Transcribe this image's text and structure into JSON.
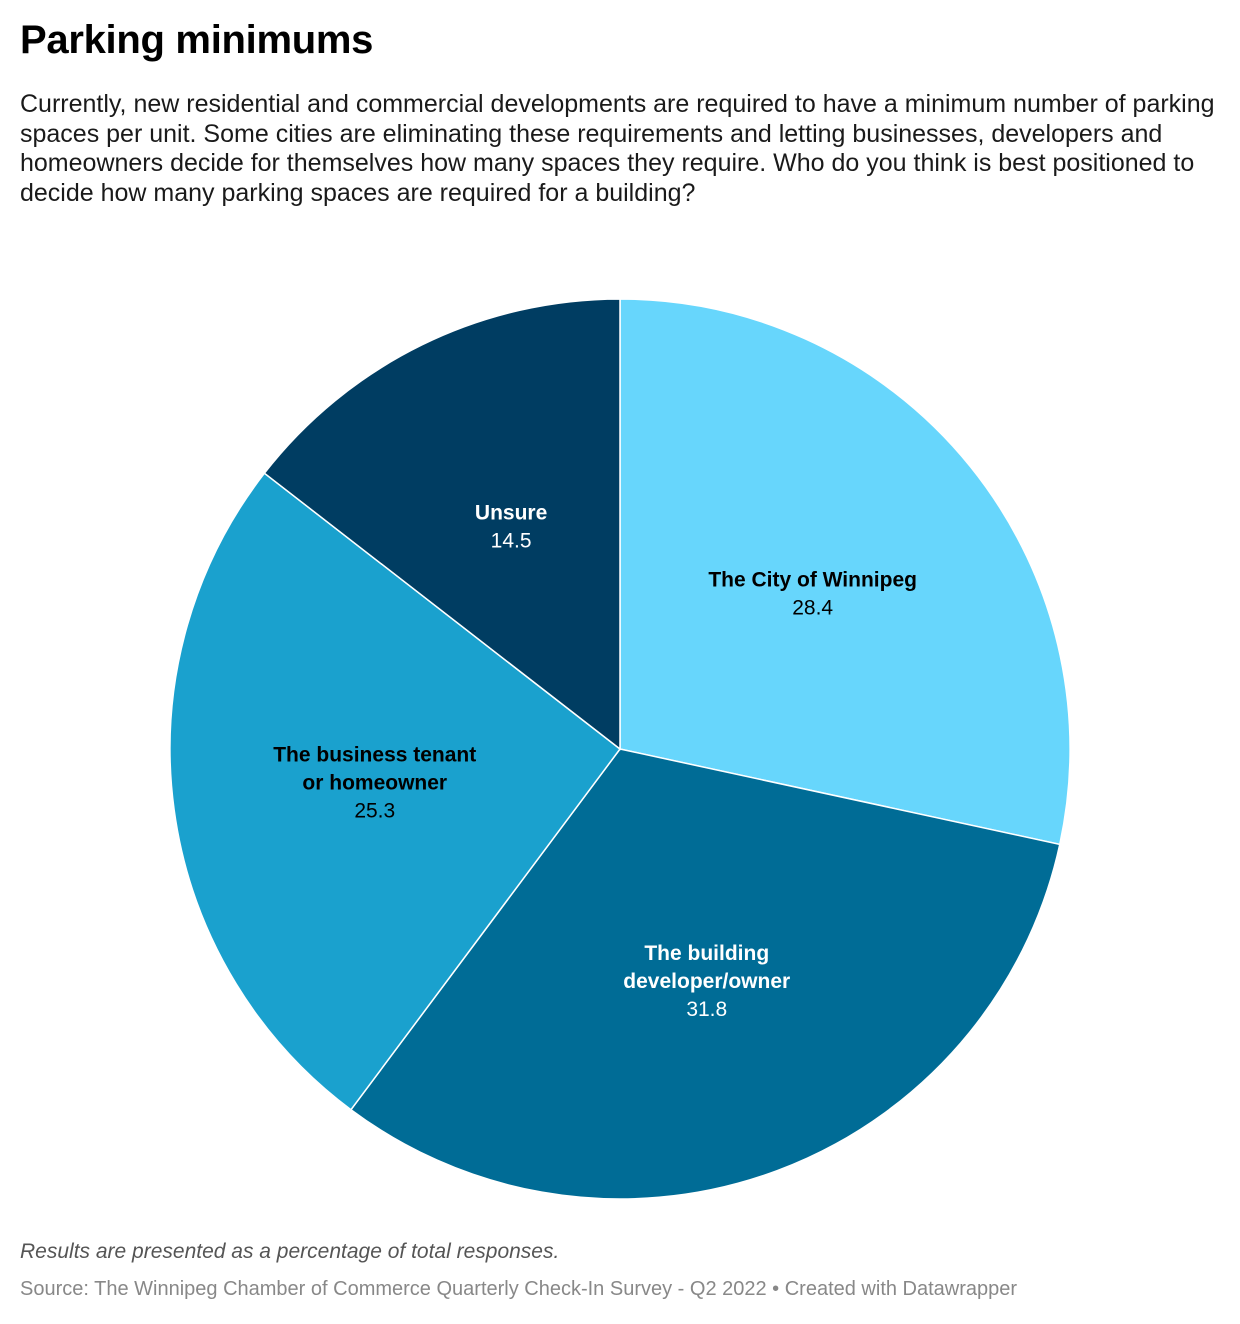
{
  "header": {
    "title": "Parking minimums",
    "description": "Currently, new residential and commercial developments are required to have a minimum number of parking spaces per unit. Some cities are eliminating these requirements and letting businesses, developers and homeowners decide for themselves how many spaces they require. Who do you think is best positioned to decide how many parking spaces are required for a building?"
  },
  "chart_data": {
    "type": "pie",
    "slices": [
      {
        "label": [
          "The City of Winnipeg"
        ],
        "value": 28.4,
        "value_text": "28.4",
        "color": "#67d6fc",
        "text_color": "#000000"
      },
      {
        "label": [
          "The building",
          "developer/owner"
        ],
        "value": 31.8,
        "value_text": "31.8",
        "color": "#006c96",
        "text_color": "#ffffff"
      },
      {
        "label": [
          "The business tenant",
          "or homeowner"
        ],
        "value": 25.3,
        "value_text": "25.3",
        "color": "#1aa1ce",
        "text_color": "#000000"
      },
      {
        "label": [
          "Unsure"
        ],
        "value": 14.5,
        "value_text": "14.5",
        "color": "#003d62",
        "text_color": "#ffffff"
      }
    ],
    "start": "12 o'clock",
    "direction": "clockwise"
  },
  "footer": {
    "notes": "Results are presented as a percentage of total responses.",
    "source": "Source: The Winnipeg Chamber of Commerce Quarterly Check-In Survey - Q2 2022 • Created with Datawrapper"
  }
}
